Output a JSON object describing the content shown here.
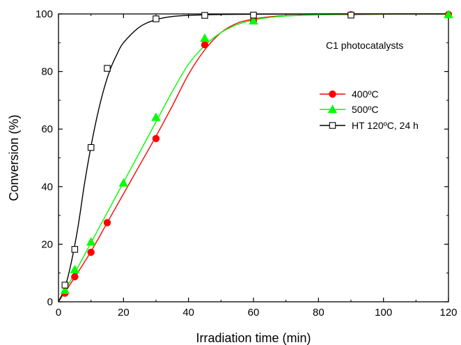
{
  "chart_data": {
    "type": "scatter",
    "title": "",
    "xlabel": "Irradiation time (min)",
    "ylabel": "Conversion (%)",
    "xlim": [
      0,
      120
    ],
    "ylim": [
      0,
      100
    ],
    "xticks": [
      0,
      20,
      40,
      60,
      80,
      100,
      120
    ],
    "yticks": [
      0,
      20,
      40,
      60,
      80,
      100
    ],
    "grid": false,
    "legend_title": "C1 photocatalysts",
    "legend_position": "top-right",
    "series": [
      {
        "name": "400ºC",
        "color": "#ff0000",
        "marker": "filled-circle",
        "x": [
          2,
          5,
          10,
          15,
          30,
          45,
          60,
          90,
          120
        ],
        "y": [
          3,
          8.7,
          17.2,
          27.5,
          56.7,
          89.3,
          97.7,
          99.7,
          99.8
        ],
        "fit_x": [
          0,
          5,
          10,
          15,
          20,
          25,
          30,
          35,
          40,
          45,
          50,
          55,
          60,
          65,
          70,
          80,
          90,
          100,
          120
        ],
        "fit_y": [
          0,
          8.5,
          17.5,
          27.5,
          37.5,
          47.5,
          57.5,
          68,
          79,
          87.5,
          93.5,
          96.8,
          98.2,
          99,
          99.4,
          99.7,
          99.8,
          99.9,
          100
        ]
      },
      {
        "name": "500ºC",
        "color": "#00ff00",
        "marker": "filled-triangle",
        "x": [
          2,
          5,
          10,
          20,
          30,
          45,
          60,
          120
        ],
        "y": [
          4,
          11.2,
          20.8,
          41.3,
          64.1,
          91.6,
          97.6,
          99.8
        ],
        "fit_x": [
          0,
          5,
          10,
          15,
          20,
          25,
          30,
          35,
          40,
          45,
          50,
          55,
          60,
          65,
          70,
          80,
          90,
          100,
          120
        ],
        "fit_y": [
          0,
          10,
          20.5,
          31,
          41.5,
          52,
          62.5,
          73,
          82.5,
          89,
          93.5,
          96.3,
          97.9,
          98.8,
          99.3,
          99.7,
          99.9,
          100,
          100
        ]
      },
      {
        "name": "HT 120ºC, 24 h",
        "color": "#000000",
        "marker": "open-square",
        "x": [
          2,
          5,
          10,
          15,
          30,
          45,
          60,
          90
        ],
        "y": [
          5.8,
          18.2,
          53.6,
          81.1,
          98.3,
          99.5,
          99.6,
          99.6
        ],
        "fit_x": [
          0,
          2,
          4,
          6,
          8,
          10,
          12,
          14,
          16,
          18,
          20,
          25,
          30,
          35,
          40,
          45,
          50,
          60,
          90,
          120
        ],
        "fit_y": [
          0,
          5,
          14,
          26,
          41,
          54,
          65,
          74,
          81,
          86,
          90,
          95.5,
          98,
          99.1,
          99.5,
          99.7,
          99.8,
          99.9,
          100,
          100
        ]
      }
    ]
  }
}
